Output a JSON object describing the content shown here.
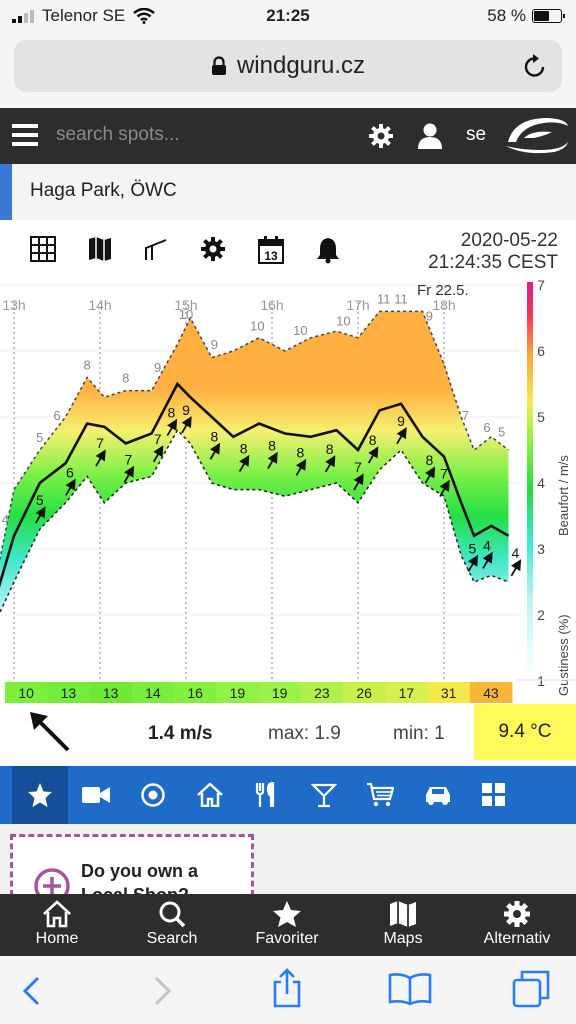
{
  "status_bar": {
    "carrier": "Telenor SE",
    "time": "21:25",
    "battery_text": "58 %",
    "battery_level": 0.58
  },
  "browser": {
    "url": "windguru.cz"
  },
  "header": {
    "search_placeholder": "search spots...",
    "language": "se"
  },
  "spot": {
    "name": "Haga Park, ÖWC"
  },
  "toolbar": {
    "icons": [
      "grid-icon",
      "map-icon",
      "graph-icon",
      "gear-icon",
      "calendar-icon",
      "bell-icon"
    ],
    "calendar_day": "13",
    "date": "2020-05-22",
    "time": "21:24:35 CEST"
  },
  "chart_data": {
    "type": "area",
    "day_label": "Fr 22.5.",
    "hour_ticks": [
      "13h",
      "14h",
      "15h",
      "16h",
      "17h",
      "18h"
    ],
    "beaufort_scale": [
      "1",
      "2",
      "3",
      "4",
      "5",
      "6",
      "7"
    ],
    "right_axis_label": "Beaufort / m/s",
    "left_axis_label": "Gustiness (%)",
    "gust_labels": [
      {
        "x": 12.9,
        "v": "4"
      },
      {
        "x": 13.3,
        "v": "5"
      },
      {
        "x": 13.5,
        "v": "6"
      },
      {
        "x": 13.85,
        "v": "8"
      },
      {
        "x": 14.3,
        "v": "8"
      },
      {
        "x": 14.67,
        "v": "9"
      },
      {
        "x": 15.0,
        "v": "10"
      },
      {
        "x": 15.33,
        "v": "9"
      },
      {
        "x": 15.83,
        "v": "10"
      },
      {
        "x": 16.33,
        "v": "10"
      },
      {
        "x": 16.83,
        "v": "10"
      },
      {
        "x": 17.3,
        "v": "11"
      },
      {
        "x": 17.5,
        "v": "11"
      },
      {
        "x": 17.83,
        "v": "9"
      },
      {
        "x": 18.25,
        "v": "7"
      },
      {
        "x": 18.5,
        "v": "6"
      },
      {
        "x": 18.67,
        "v": "5"
      }
    ],
    "wind_labels": [
      {
        "x": 13.3,
        "v": "5"
      },
      {
        "x": 13.65,
        "v": "6"
      },
      {
        "x": 14.0,
        "v": "7"
      },
      {
        "x": 14.33,
        "v": "7"
      },
      {
        "x": 14.67,
        "v": "7"
      },
      {
        "x": 14.83,
        "v": "8"
      },
      {
        "x": 15.0,
        "v": "9"
      },
      {
        "x": 15.33,
        "v": "8"
      },
      {
        "x": 15.67,
        "v": "8"
      },
      {
        "x": 16.0,
        "v": "8"
      },
      {
        "x": 16.33,
        "v": "8"
      },
      {
        "x": 16.67,
        "v": "8"
      },
      {
        "x": 17.0,
        "v": "7"
      },
      {
        "x": 17.17,
        "v": "8"
      },
      {
        "x": 17.5,
        "v": "9"
      },
      {
        "x": 17.83,
        "v": "8"
      },
      {
        "x": 18.0,
        "v": "7"
      },
      {
        "x": 18.33,
        "v": "5"
      },
      {
        "x": 18.5,
        "v": "4"
      },
      {
        "x": 18.83,
        "v": "4"
      }
    ],
    "wind_mean": [
      [
        12.75,
        2.1
      ],
      [
        13.0,
        3.2
      ],
      [
        13.3,
        4.0
      ],
      [
        13.6,
        4.3
      ],
      [
        13.85,
        4.9
      ],
      [
        14.05,
        4.85
      ],
      [
        14.3,
        4.6
      ],
      [
        14.6,
        4.75
      ],
      [
        14.9,
        5.5
      ],
      [
        15.05,
        5.3
      ],
      [
        15.3,
        5.0
      ],
      [
        15.55,
        4.7
      ],
      [
        15.85,
        4.9
      ],
      [
        16.15,
        4.75
      ],
      [
        16.45,
        4.7
      ],
      [
        16.75,
        4.8
      ],
      [
        17.0,
        4.5
      ],
      [
        17.25,
        5.1
      ],
      [
        17.5,
        5.2
      ],
      [
        17.75,
        4.7
      ],
      [
        18.0,
        4.4
      ],
      [
        18.2,
        3.7
      ],
      [
        18.35,
        3.2
      ],
      [
        18.55,
        3.35
      ],
      [
        18.75,
        3.2
      ]
    ],
    "wind_min": [
      [
        12.75,
        1.8
      ],
      [
        13.0,
        2.5
      ],
      [
        13.3,
        3.3
      ],
      [
        13.6,
        3.7
      ],
      [
        13.85,
        4.1
      ],
      [
        14.05,
        3.7
      ],
      [
        14.3,
        4.0
      ],
      [
        14.6,
        4.1
      ],
      [
        14.9,
        4.8
      ],
      [
        15.05,
        4.6
      ],
      [
        15.3,
        4.0
      ],
      [
        15.55,
        3.9
      ],
      [
        15.85,
        3.9
      ],
      [
        16.15,
        3.8
      ],
      [
        16.45,
        3.9
      ],
      [
        16.75,
        4.0
      ],
      [
        17.0,
        3.7
      ],
      [
        17.25,
        4.2
      ],
      [
        17.5,
        4.5
      ],
      [
        17.75,
        4.0
      ],
      [
        18.0,
        3.8
      ],
      [
        18.2,
        2.9
      ],
      [
        18.35,
        2.5
      ],
      [
        18.55,
        2.6
      ],
      [
        18.75,
        2.5
      ]
    ],
    "wind_max": [
      [
        12.75,
        2.3
      ],
      [
        13.0,
        3.9
      ],
      [
        13.3,
        4.5
      ],
      [
        13.6,
        5.0
      ],
      [
        13.85,
        5.6
      ],
      [
        14.05,
        5.3
      ],
      [
        14.3,
        5.4
      ],
      [
        14.6,
        5.4
      ],
      [
        14.9,
        6.1
      ],
      [
        15.05,
        6.5
      ],
      [
        15.3,
        5.9
      ],
      [
        15.55,
        6.0
      ],
      [
        15.85,
        6.2
      ],
      [
        16.15,
        6.0
      ],
      [
        16.45,
        6.2
      ],
      [
        16.75,
        6.3
      ],
      [
        17.0,
        6.2
      ],
      [
        17.25,
        6.6
      ],
      [
        17.5,
        6.6
      ],
      [
        17.75,
        6.6
      ],
      [
        18.0,
        5.8
      ],
      [
        18.2,
        5.0
      ],
      [
        18.35,
        4.5
      ],
      [
        18.55,
        4.7
      ],
      [
        18.75,
        4.5
      ]
    ],
    "dir_strip": [
      "10",
      "13",
      "13",
      "14",
      "16",
      "19",
      "19",
      "23",
      "26",
      "17",
      "31",
      "43"
    ],
    "dir_strip_colors": [
      "#7bef3c",
      "#72ee3a",
      "#6fe735",
      "#7aee3c",
      "#83f03c",
      "#8ff244",
      "#98f24a",
      "#b0f04a",
      "#c9f04a",
      "#d6f050",
      "#f5e84a",
      "#f7b637"
    ]
  },
  "current": {
    "speed": "1.4 m/s",
    "max": "max: 1.9",
    "min": "min: 1",
    "temp": "9.4 °C"
  },
  "categories": [
    "star-icon",
    "video-icon",
    "target-icon",
    "home-icon",
    "restaurant-icon",
    "cocktail-icon",
    "cart-icon",
    "car-icon",
    "apps-icon"
  ],
  "ad": {
    "line1": "Do you own a",
    "line2": "Local Shop?"
  },
  "app_nav": {
    "home": "Home",
    "search": "Search",
    "favorites": "Favoriter",
    "maps": "Maps",
    "options": "Alternativ"
  }
}
